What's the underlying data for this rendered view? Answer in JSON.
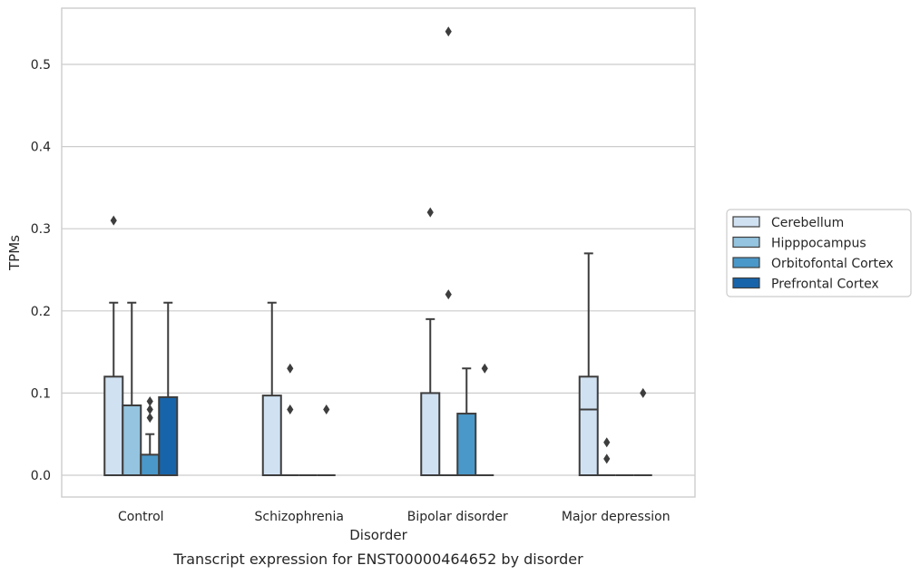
{
  "caption": "Transcript expression for ENST00000464652 by disorder",
  "chart_data": {
    "type": "box",
    "xlabel": "Disorder",
    "ylabel": "TPMs",
    "ylim": [
      -0.026,
      0.565
    ],
    "yticks": [
      0.0,
      0.1,
      0.2,
      0.3,
      0.4,
      0.5
    ],
    "ytick_labels": [
      "0.0",
      "0.1",
      "0.2",
      "0.3",
      "0.4",
      "0.5"
    ],
    "grid": true,
    "legend_position": "right",
    "categories": [
      "Control",
      "Schizophrenia",
      "Bipolar disorder",
      "Major depression"
    ],
    "series": [
      {
        "name": "Cerebellum",
        "color": "#d0e1f2",
        "boxes": [
          {
            "q1": 0.0,
            "median": 0.0,
            "q3": 0.12,
            "whislo": 0.0,
            "whishi": 0.21,
            "fliers": [
              0.31
            ]
          },
          {
            "q1": 0.0,
            "median": 0.0,
            "q3": 0.097,
            "whislo": 0.0,
            "whishi": 0.21,
            "fliers": []
          },
          {
            "q1": 0.0,
            "median": 0.0,
            "q3": 0.1,
            "whislo": 0.0,
            "whishi": 0.19,
            "fliers": [
              0.32
            ]
          },
          {
            "q1": 0.0,
            "median": 0.08,
            "q3": 0.12,
            "whislo": 0.0,
            "whishi": 0.27,
            "fliers": []
          }
        ]
      },
      {
        "name": "Hipppocampus",
        "color": "#94c4df",
        "boxes": [
          {
            "q1": 0.0,
            "median": 0.0,
            "q3": 0.085,
            "whislo": 0.0,
            "whishi": 0.21,
            "fliers": []
          },
          {
            "q1": 0.0,
            "median": 0.0,
            "q3": 0.0,
            "whislo": 0.0,
            "whishi": 0.0,
            "fliers": [
              0.08,
              0.13
            ]
          },
          {
            "q1": 0.0,
            "median": 0.0,
            "q3": 0.0,
            "whislo": 0.0,
            "whishi": 0.0,
            "fliers": [
              0.22,
              0.54
            ]
          },
          {
            "q1": 0.0,
            "median": 0.0,
            "q3": 0.0,
            "whislo": 0.0,
            "whishi": 0.0,
            "fliers": [
              0.02,
              0.04
            ]
          }
        ]
      },
      {
        "name": "Orbitofontal Cortex",
        "color": "#4a98c9",
        "boxes": [
          {
            "q1": 0.0,
            "median": 0.0,
            "q3": 0.025,
            "whislo": 0.0,
            "whishi": 0.05,
            "fliers": [
              0.07,
              0.08,
              0.09
            ]
          },
          {
            "q1": 0.0,
            "median": 0.0,
            "q3": 0.0,
            "whislo": 0.0,
            "whishi": 0.0,
            "fliers": []
          },
          {
            "q1": 0.0,
            "median": 0.0,
            "q3": 0.075,
            "whislo": 0.0,
            "whishi": 0.13,
            "fliers": []
          },
          {
            "q1": 0.0,
            "median": 0.0,
            "q3": 0.0,
            "whislo": 0.0,
            "whishi": 0.0,
            "fliers": []
          }
        ]
      },
      {
        "name": "Prefrontal Cortex",
        "color": "#1764ab",
        "boxes": [
          {
            "q1": 0.0,
            "median": 0.0,
            "q3": 0.095,
            "whislo": 0.0,
            "whishi": 0.21,
            "fliers": []
          },
          {
            "q1": 0.0,
            "median": 0.0,
            "q3": 0.0,
            "whislo": 0.0,
            "whishi": 0.0,
            "fliers": [
              0.08
            ]
          },
          {
            "q1": 0.0,
            "median": 0.0,
            "q3": 0.0,
            "whislo": 0.0,
            "whishi": 0.0,
            "fliers": [
              0.13
            ]
          },
          {
            "q1": 0.0,
            "median": 0.0,
            "q3": 0.0,
            "whislo": 0.0,
            "whishi": 0.0,
            "fliers": [
              0.1
            ]
          }
        ]
      }
    ]
  }
}
